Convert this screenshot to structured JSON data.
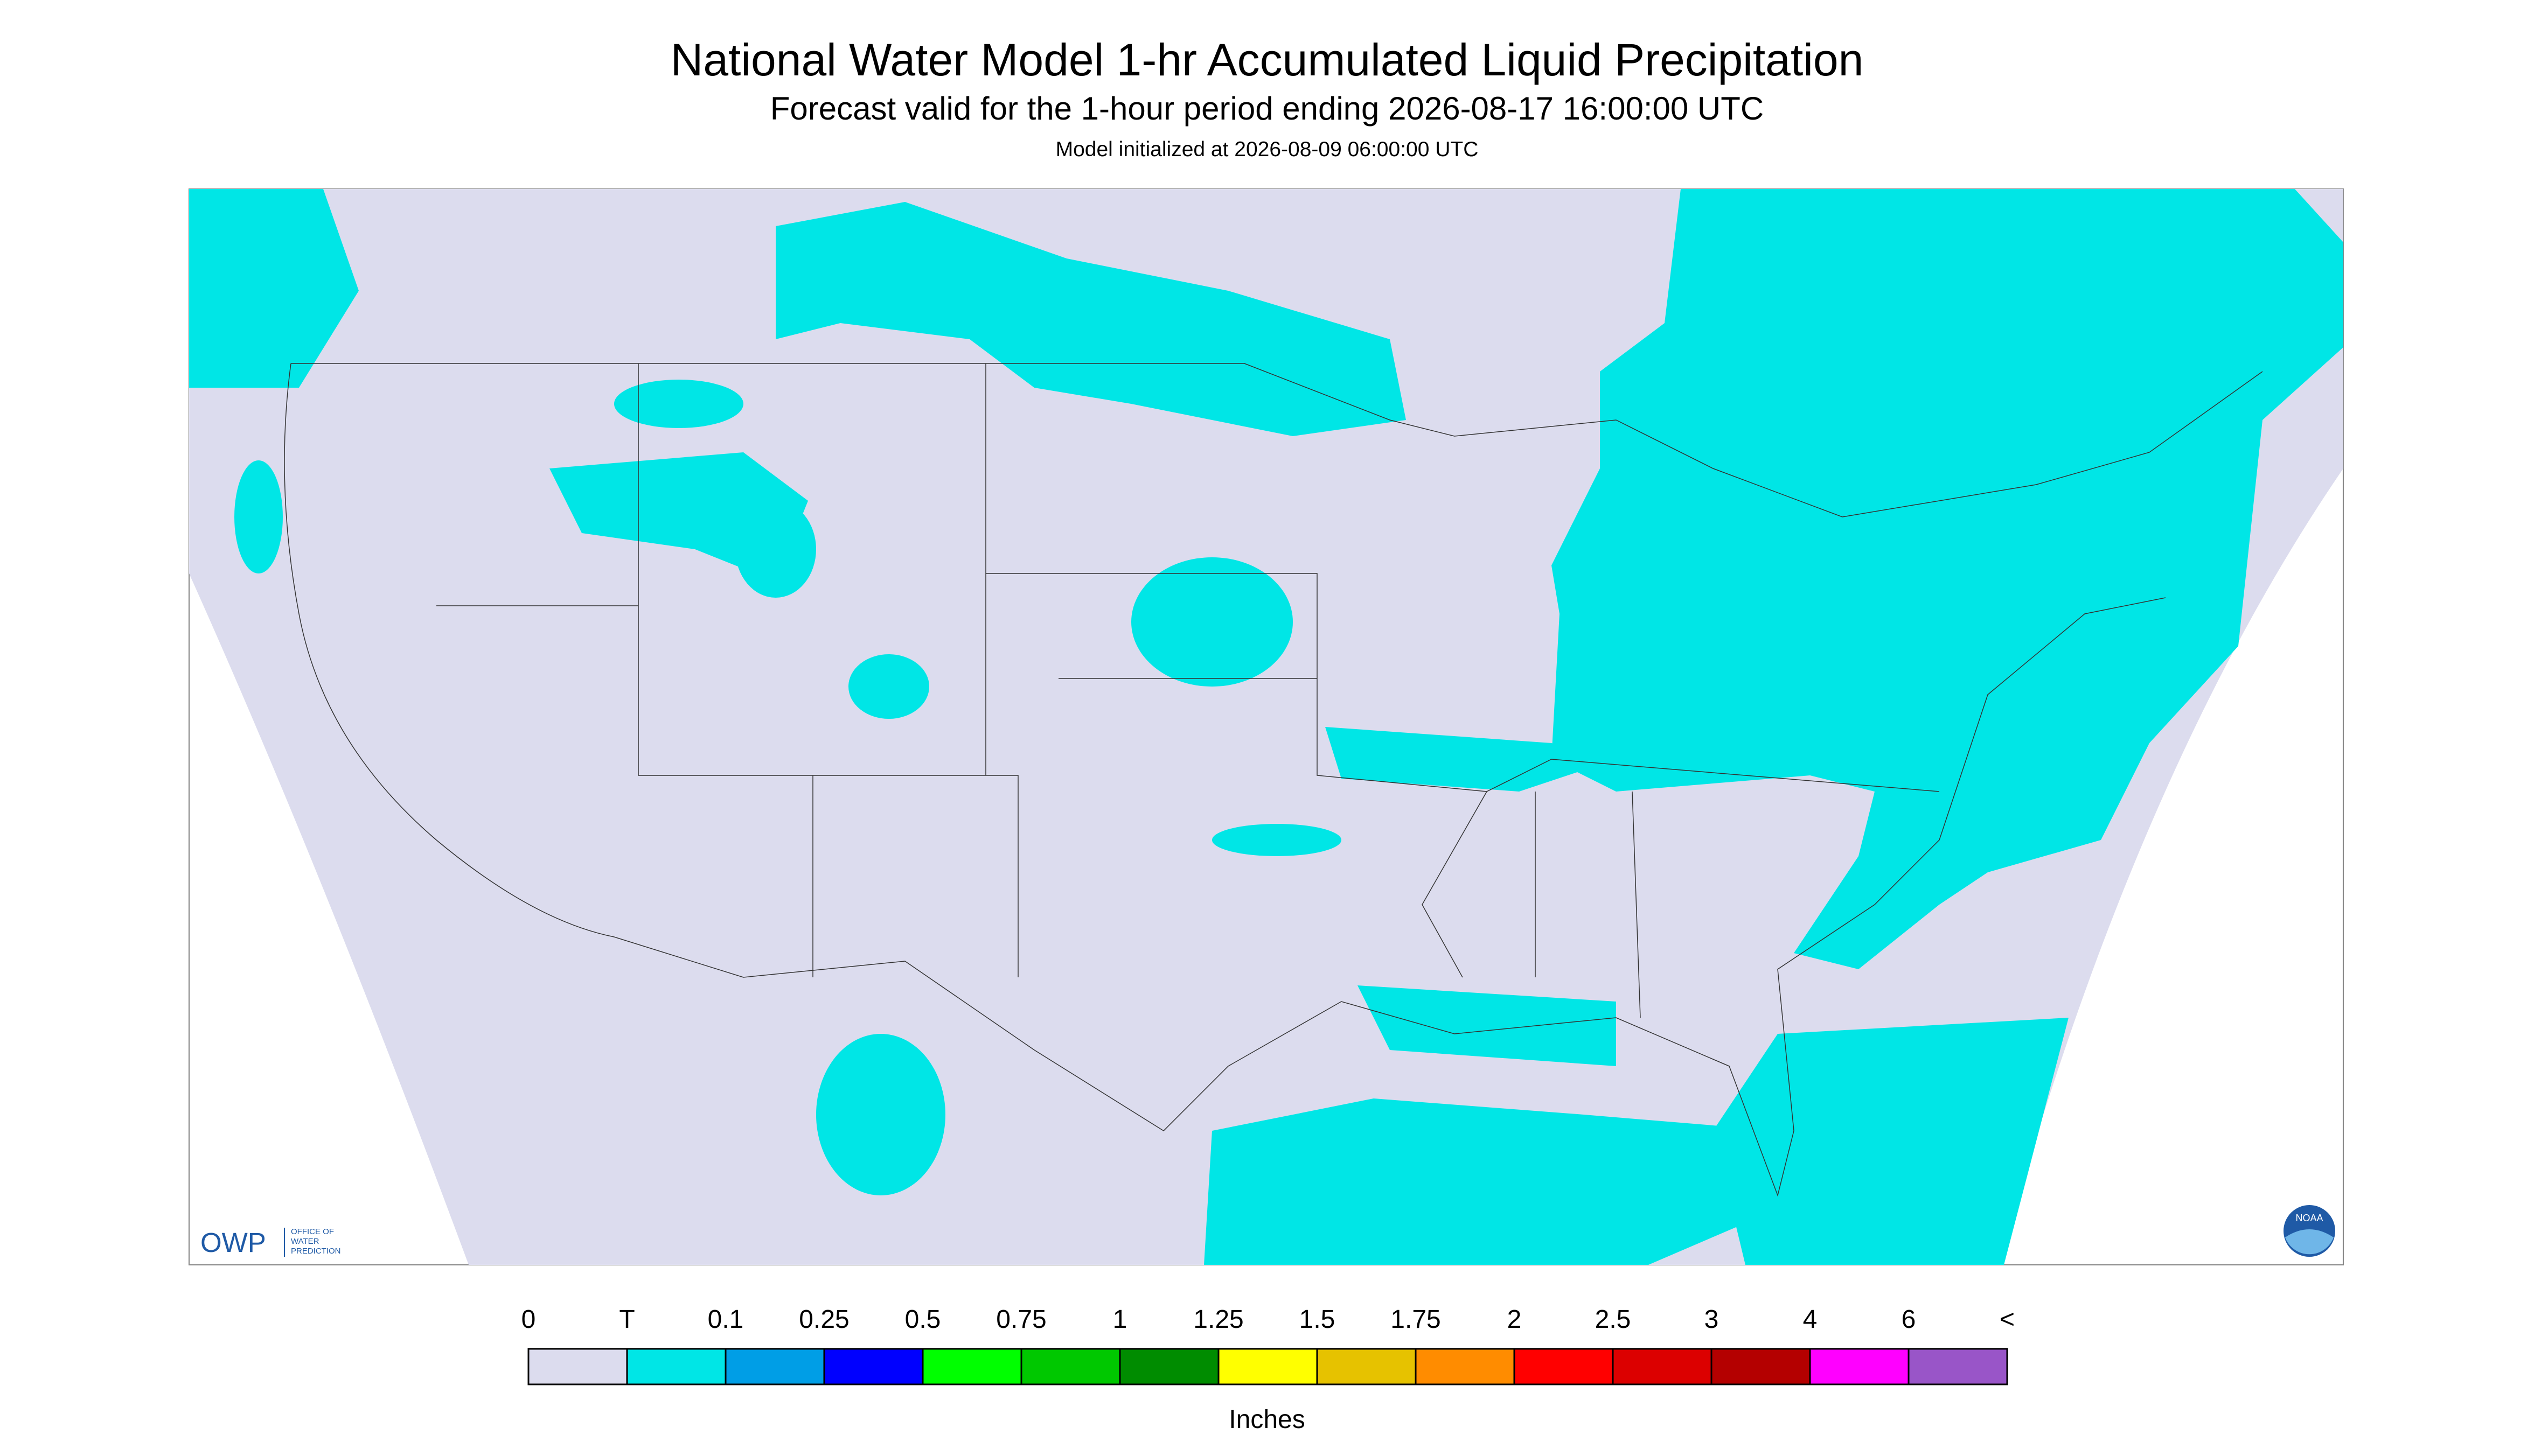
{
  "header": {
    "title": "National Water Model 1-hr Accumulated Liquid Precipitation",
    "subtitle": "Forecast valid for the 1-hour period ending 2026-08-17 16:00:00 UTC",
    "initialized": "Model initialized at 2026-08-09 06:00:00 UTC"
  },
  "map": {
    "logo": {
      "abbr": "OWP",
      "name": [
        "OFFICE OF",
        "WATER",
        "PREDICTION"
      ]
    },
    "badge": "NOAA"
  },
  "legend": {
    "labels": [
      "0",
      "T",
      "0.1",
      "0.25",
      "0.5",
      "0.75",
      "1",
      "1.25",
      "1.5",
      "1.75",
      "2",
      "2.5",
      "3",
      "4",
      "6",
      "<"
    ],
    "colors": [
      "#dcdcee",
      "#00e6e6",
      "#009ee6",
      "#0000ff",
      "#00ff00",
      "#00c800",
      "#008c00",
      "#ffff00",
      "#e6c200",
      "#ff8c00",
      "#ff0000",
      "#dc0000",
      "#b40000",
      "#ff00ff",
      "#9955c8"
    ],
    "unit": "Inches"
  }
}
